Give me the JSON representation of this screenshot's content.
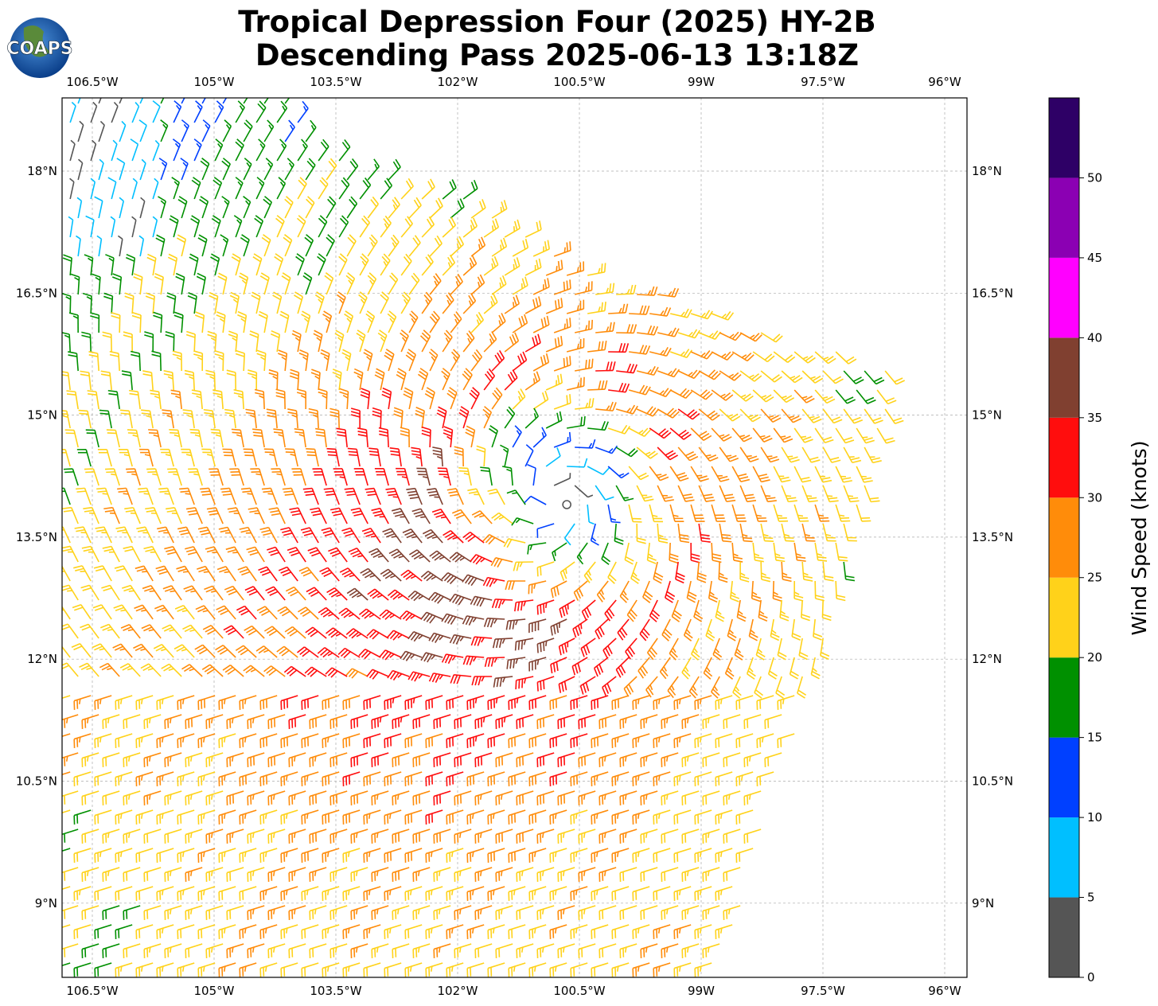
{
  "title_line1": "Tropical Depression Four (2025) HY-2B",
  "title_line2": "Descending Pass 2025-06-13 13:18Z",
  "logo_text": "COAPS",
  "chart_data": {
    "type": "map",
    "lon_ticks": [
      "106.5°W",
      "105°W",
      "103.5°W",
      "102°W",
      "100.5°W",
      "99W",
      "97.5°W",
      "96°W"
    ],
    "lon_values": [
      -106.5,
      -105,
      -103.5,
      -102,
      -100.5,
      -99,
      -97.5,
      -96
    ],
    "lat_ticks": [
      "18°N",
      "16.5°N",
      "15°N",
      "13.5°N",
      "12°N",
      "10.5°N",
      "9°N"
    ],
    "lat_values": [
      18,
      16.5,
      15,
      13.5,
      12,
      10.5,
      9
    ],
    "storm_center": {
      "lon": -100.8,
      "lat": 14.0
    },
    "colorbar": {
      "label": "Wind Speed (knots)",
      "ticks": [
        "0",
        "5",
        "10",
        "15",
        "20",
        "25",
        "30",
        "35",
        "40",
        "45",
        "50"
      ],
      "bounds": [
        0,
        5,
        10,
        15,
        20,
        25,
        30,
        35,
        40,
        45,
        50,
        55
      ],
      "colors": [
        "#555555",
        "#00bfff",
        "#0040ff",
        "#009000",
        "#ffd21a",
        "#ff8c0a",
        "#ff0d0d",
        "#804030",
        "#ff00ff",
        "#8b00b3",
        "#2e0066"
      ]
    }
  }
}
